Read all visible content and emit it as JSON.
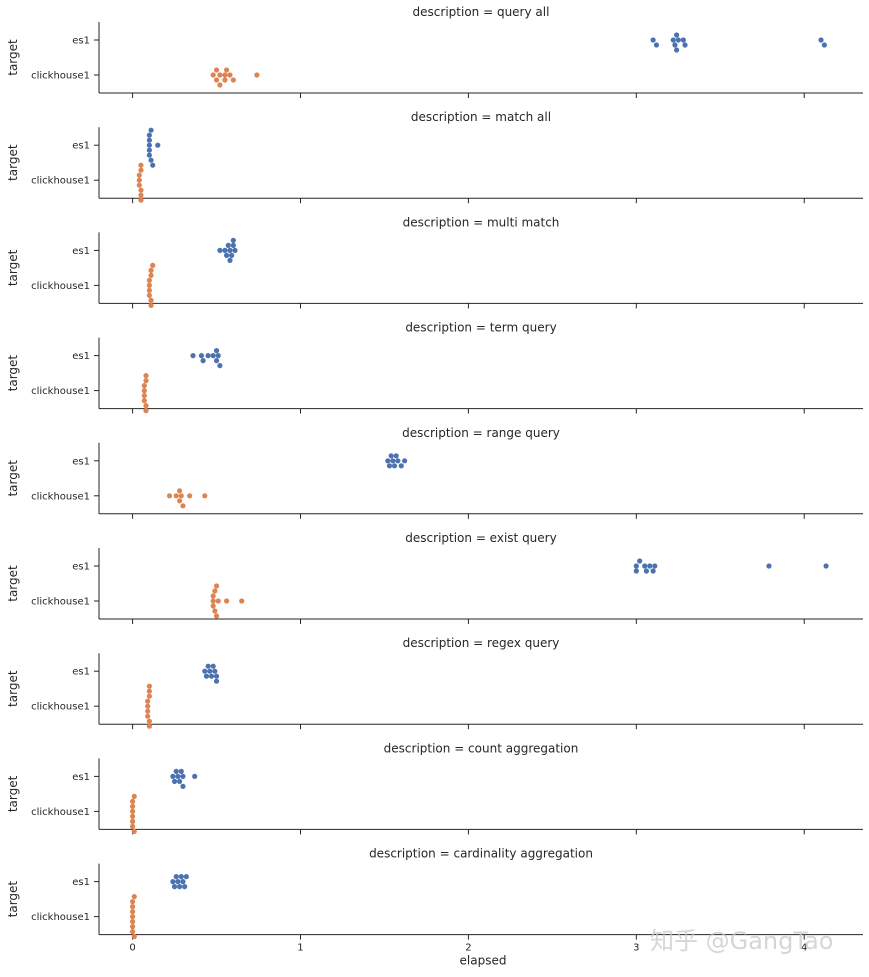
{
  "chart_data": {
    "type": "scatter",
    "subtype": "swarm",
    "xlabel": "elapsed",
    "ylabel": "target",
    "xlim": [
      -0.2,
      4.35
    ],
    "xticks": [
      0,
      1,
      2,
      3,
      4
    ],
    "categories": [
      "es1",
      "clickhouse1"
    ],
    "colors": {
      "es1": "#4c72b0",
      "clickhouse1": "#dd8452"
    },
    "panels": [
      {
        "title": "description = query all",
        "es1": [
          3.1,
          3.12,
          3.22,
          3.23,
          3.24,
          3.24,
          3.25,
          3.28,
          3.29,
          4.1,
          4.12
        ],
        "clickhouse1": [
          0.48,
          0.5,
          0.5,
          0.52,
          0.52,
          0.55,
          0.55,
          0.56,
          0.58,
          0.6,
          0.74
        ]
      },
      {
        "title": "description = match all",
        "es1": [
          0.1,
          0.1,
          0.1,
          0.1,
          0.1,
          0.11,
          0.11,
          0.12,
          0.15
        ],
        "clickhouse1": [
          0.04,
          0.04,
          0.04,
          0.05,
          0.05,
          0.05,
          0.05,
          0.05
        ]
      },
      {
        "title": "description = multi match",
        "es1": [
          0.52,
          0.55,
          0.56,
          0.57,
          0.58,
          0.58,
          0.59,
          0.6,
          0.6,
          0.61
        ],
        "clickhouse1": [
          0.1,
          0.1,
          0.1,
          0.1,
          0.11,
          0.11,
          0.11,
          0.11,
          0.12
        ]
      },
      {
        "title": "description = term query",
        "es1": [
          0.36,
          0.41,
          0.42,
          0.45,
          0.48,
          0.5,
          0.5,
          0.51,
          0.52
        ],
        "clickhouse1": [
          0.07,
          0.07,
          0.07,
          0.07,
          0.08,
          0.08,
          0.08,
          0.08
        ]
      },
      {
        "title": "description = range query",
        "es1": [
          1.52,
          1.53,
          1.54,
          1.55,
          1.56,
          1.57,
          1.58,
          1.6,
          1.62
        ],
        "clickhouse1": [
          0.22,
          0.26,
          0.28,
          0.28,
          0.29,
          0.3,
          0.34,
          0.43
        ]
      },
      {
        "title": "description = exist query",
        "es1": [
          3.0,
          3.0,
          3.02,
          3.05,
          3.06,
          3.08,
          3.1,
          3.11,
          3.79,
          4.13
        ],
        "clickhouse1": [
          0.48,
          0.48,
          0.48,
          0.49,
          0.49,
          0.5,
          0.5,
          0.51,
          0.56,
          0.65
        ]
      },
      {
        "title": "description = regex query",
        "es1": [
          0.43,
          0.44,
          0.45,
          0.46,
          0.47,
          0.48,
          0.49,
          0.5,
          0.5
        ],
        "clickhouse1": [
          0.09,
          0.09,
          0.09,
          0.09,
          0.1,
          0.1,
          0.1,
          0.1,
          0.1
        ]
      },
      {
        "title": "description = count aggregation",
        "es1": [
          0.24,
          0.25,
          0.26,
          0.27,
          0.28,
          0.29,
          0.3,
          0.3,
          0.37
        ],
        "clickhouse1": [
          0.0,
          0.0,
          0.0,
          0.0,
          0.0,
          0.0,
          0.01,
          0.01
        ]
      },
      {
        "title": "description = cardinality aggregation",
        "es1": [
          0.24,
          0.25,
          0.26,
          0.27,
          0.28,
          0.29,
          0.3,
          0.31,
          0.32
        ],
        "clickhouse1": [
          0.0,
          0.0,
          0.0,
          0.0,
          0.0,
          0.0,
          0.0,
          0.01,
          0.01
        ]
      }
    ]
  },
  "watermark": "知乎 @GangTao"
}
